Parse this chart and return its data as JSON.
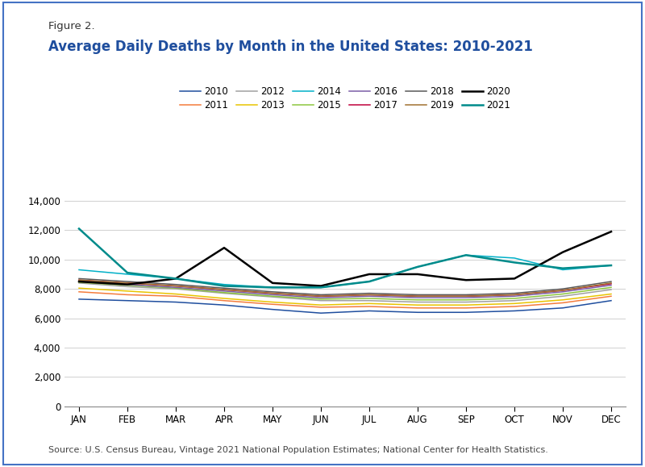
{
  "figure_label": "Figure 2.",
  "title": "Average Daily Deaths by Month in the United States: 2010-2021",
  "source": "Source: U.S. Census Bureau, Vintage 2021 National Population Estimates; National Center for Health Statistics.",
  "months": [
    "JAN",
    "FEB",
    "MAR",
    "APR",
    "MAY",
    "JUN",
    "JUL",
    "AUG",
    "SEP",
    "OCT",
    "NOV",
    "DEC"
  ],
  "ylim": [
    0,
    14000
  ],
  "yticks": [
    0,
    2000,
    4000,
    6000,
    8000,
    10000,
    12000,
    14000
  ],
  "series": {
    "2010": {
      "color": "#1f4e9e",
      "data": [
        7300,
        7200,
        7100,
        6900,
        6600,
        6350,
        6500,
        6400,
        6400,
        6500,
        6700,
        7200
      ]
    },
    "2011": {
      "color": "#f47c3c",
      "data": [
        7800,
        7600,
        7500,
        7200,
        6950,
        6750,
        6800,
        6700,
        6700,
        6800,
        7050,
        7500
      ]
    },
    "2012": {
      "color": "#a0a0a0",
      "data": [
        8400,
        8150,
        8000,
        7700,
        7450,
        7200,
        7200,
        7100,
        7100,
        7200,
        7500,
        7950
      ]
    },
    "2013": {
      "color": "#e8c400",
      "data": [
        8050,
        7850,
        7650,
        7350,
        7100,
        6900,
        7000,
        6900,
        6900,
        7000,
        7250,
        7650
      ]
    },
    "2014": {
      "color": "#00b0c8",
      "data": [
        9300,
        9000,
        8700,
        8300,
        8100,
        8100,
        8500,
        9500,
        10300,
        10100,
        9300,
        9600
      ]
    },
    "2015": {
      "color": "#8dc63f",
      "data": [
        8450,
        8250,
        8050,
        7750,
        7500,
        7300,
        7350,
        7250,
        7250,
        7350,
        7650,
        8100
      ]
    },
    "2016": {
      "color": "#7b5ea7",
      "data": [
        8500,
        8300,
        8100,
        7850,
        7600,
        7400,
        7500,
        7400,
        7400,
        7500,
        7800,
        8250
      ]
    },
    "2017": {
      "color": "#c0003c",
      "data": [
        8600,
        8400,
        8200,
        7950,
        7700,
        7500,
        7600,
        7500,
        7500,
        7600,
        7900,
        8350
      ]
    },
    "2018": {
      "color": "#595959",
      "data": [
        8700,
        8500,
        8300,
        8050,
        7800,
        7600,
        7700,
        7600,
        7600,
        7700,
        8000,
        8500
      ]
    },
    "2019": {
      "color": "#a07030",
      "data": [
        8600,
        8400,
        8200,
        7950,
        7700,
        7500,
        7600,
        7500,
        7500,
        7600,
        7900,
        8400
      ]
    },
    "2020": {
      "color": "#000000",
      "data": [
        8500,
        8300,
        8700,
        10800,
        8400,
        8200,
        9000,
        9000,
        8600,
        8700,
        10500,
        11900
      ]
    },
    "2021": {
      "color": "#008B8B",
      "data": [
        12100,
        9100,
        8700,
        8200,
        8100,
        8100,
        8500,
        9500,
        10300,
        9800,
        9400,
        9600
      ]
    }
  },
  "border_color": "#4472c4",
  "background_color": "#ffffff",
  "plot_bg_color": "#ffffff",
  "title_color": "#1f4e9e",
  "figure_label_color": "#333333",
  "grid_color": "#d0d0d0",
  "source_color": "#444444",
  "legend_order": [
    "2010",
    "2011",
    "2012",
    "2013",
    "2014",
    "2015",
    "2016",
    "2017",
    "2018",
    "2019",
    "2020",
    "2021"
  ]
}
